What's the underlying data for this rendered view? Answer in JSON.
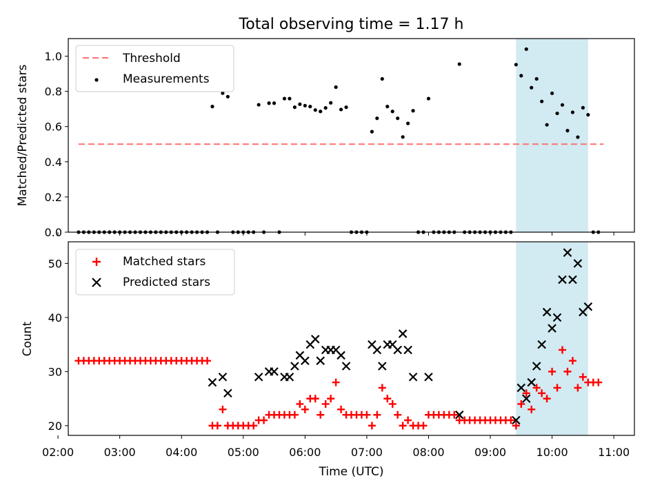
{
  "chart_data": [
    {
      "type": "scatter",
      "title": "Total observing time = 1.17 h",
      "xlabel": "",
      "ylabel": "Matched/Predicted stars",
      "xlim": [
        "02:10",
        "11:20"
      ],
      "ylim": [
        0,
        1.1
      ],
      "yticks": [
        "0.0",
        "0.2",
        "0.4",
        "0.6",
        "0.8",
        "1.0"
      ],
      "highlight_span": {
        "from": "09:25",
        "to": "10:35",
        "color": "#add8e6"
      },
      "legend": {
        "placement": "upper-left",
        "entries": [
          "Threshold",
          "Measurements"
        ]
      },
      "series": [
        {
          "name": "Threshold",
          "style": "dashed-line",
          "color": "#ff6f6f",
          "points": [
            [
              "02:20",
              0.5
            ],
            [
              "10:50",
              0.5
            ]
          ]
        },
        {
          "name": "Measurements",
          "style": "dot",
          "color": "#000000",
          "points": [
            [
              "02:20",
              0
            ],
            [
              "02:25",
              0
            ],
            [
              "02:30",
              0
            ],
            [
              "02:35",
              0
            ],
            [
              "02:40",
              0
            ],
            [
              "02:45",
              0
            ],
            [
              "02:50",
              0
            ],
            [
              "02:55",
              0
            ],
            [
              "03:00",
              0
            ],
            [
              "03:05",
              0
            ],
            [
              "03:10",
              0
            ],
            [
              "03:15",
              0
            ],
            [
              "03:20",
              0
            ],
            [
              "03:25",
              0
            ],
            [
              "03:30",
              0
            ],
            [
              "03:35",
              0
            ],
            [
              "03:40",
              0
            ],
            [
              "03:45",
              0
            ],
            [
              "03:50",
              0
            ],
            [
              "03:55",
              0
            ],
            [
              "04:00",
              0
            ],
            [
              "04:05",
              0
            ],
            [
              "04:10",
              0
            ],
            [
              "04:15",
              0
            ],
            [
              "04:20",
              0
            ],
            [
              "04:25",
              0
            ],
            [
              "04:30",
              0.714
            ],
            [
              "04:35",
              0
            ],
            [
              "04:40",
              0.79
            ],
            [
              "04:45",
              0.77
            ],
            [
              "04:50",
              0
            ],
            [
              "04:55",
              0
            ],
            [
              "05:00",
              0
            ],
            [
              "05:05",
              0
            ],
            [
              "05:10",
              0
            ],
            [
              "05:15",
              0.724
            ],
            [
              "05:20",
              0
            ],
            [
              "05:25",
              0.733
            ],
            [
              "05:30",
              0.733
            ],
            [
              "05:35",
              0
            ],
            [
              "05:40",
              0.759
            ],
            [
              "05:45",
              0.759
            ],
            [
              "05:50",
              0.71
            ],
            [
              "05:55",
              0.727
            ],
            [
              "06:00",
              0.719
            ],
            [
              "06:05",
              0.714
            ],
            [
              "06:10",
              0.694
            ],
            [
              "06:15",
              0.686
            ],
            [
              "06:20",
              0.706
            ],
            [
              "06:25",
              0.735
            ],
            [
              "06:30",
              0.824
            ],
            [
              "06:35",
              0.697
            ],
            [
              "06:40",
              0.71
            ],
            [
              "06:45",
              0
            ],
            [
              "06:50",
              0
            ],
            [
              "06:55",
              0
            ],
            [
              "07:00",
              0
            ],
            [
              "07:05",
              0.571
            ],
            [
              "07:10",
              0.647
            ],
            [
              "07:15",
              0.871
            ],
            [
              "07:20",
              0.714
            ],
            [
              "07:25",
              0.686
            ],
            [
              "07:30",
              0.647
            ],
            [
              "07:35",
              0.541
            ],
            [
              "07:40",
              0.618
            ],
            [
              "07:45",
              0.69
            ],
            [
              "07:50",
              0
            ],
            [
              "07:55",
              0
            ],
            [
              "08:00",
              0.759
            ],
            [
              "08:05",
              0
            ],
            [
              "08:10",
              0
            ],
            [
              "08:15",
              0
            ],
            [
              "08:20",
              0
            ],
            [
              "08:25",
              0
            ],
            [
              "08:30",
              0.955
            ],
            [
              "08:35",
              0
            ],
            [
              "08:40",
              0
            ],
            [
              "08:45",
              0
            ],
            [
              "08:50",
              0
            ],
            [
              "08:55",
              0
            ],
            [
              "09:00",
              0
            ],
            [
              "09:05",
              0
            ],
            [
              "09:10",
              0
            ],
            [
              "09:15",
              0
            ],
            [
              "09:20",
              0
            ],
            [
              "09:25",
              0.952
            ],
            [
              "09:30",
              0.889
            ],
            [
              "09:35",
              1.04
            ],
            [
              "09:40",
              0.821
            ],
            [
              "09:45",
              0.871
            ],
            [
              "09:50",
              0.743
            ],
            [
              "09:55",
              0.61
            ],
            [
              "10:00",
              0.789
            ],
            [
              "10:05",
              0.675
            ],
            [
              "10:10",
              0.723
            ],
            [
              "10:15",
              0.577
            ],
            [
              "10:20",
              0.681
            ],
            [
              "10:25",
              0.54
            ],
            [
              "10:30",
              0.707
            ],
            [
              "10:35",
              0.667
            ],
            [
              "10:40",
              0
            ],
            [
              "10:45",
              0
            ]
          ]
        }
      ]
    },
    {
      "type": "scatter",
      "title": "",
      "xlabel": "Time (UTC)",
      "ylabel": "Count",
      "xlim": [
        "02:10",
        "11:20"
      ],
      "ylim": [
        18.2,
        54
      ],
      "xticks": [
        "02:00",
        "03:00",
        "04:00",
        "05:00",
        "06:00",
        "07:00",
        "08:00",
        "09:00",
        "10:00",
        "11:00"
      ],
      "yticks": [
        "20",
        "30",
        "40",
        "50"
      ],
      "highlight_span": {
        "from": "09:25",
        "to": "10:35",
        "color": "#add8e6"
      },
      "legend": {
        "placement": "upper-left",
        "entries": [
          "Matched stars",
          "Predicted stars"
        ]
      },
      "series": [
        {
          "name": "Matched stars",
          "marker": "plus",
          "color": "#ff0000",
          "points": [
            [
              "02:20",
              32
            ],
            [
              "02:25",
              32
            ],
            [
              "02:30",
              32
            ],
            [
              "02:35",
              32
            ],
            [
              "02:40",
              32
            ],
            [
              "02:45",
              32
            ],
            [
              "02:50",
              32
            ],
            [
              "02:55",
              32
            ],
            [
              "03:00",
              32
            ],
            [
              "03:05",
              32
            ],
            [
              "03:10",
              32
            ],
            [
              "03:15",
              32
            ],
            [
              "03:20",
              32
            ],
            [
              "03:25",
              32
            ],
            [
              "03:30",
              32
            ],
            [
              "03:35",
              32
            ],
            [
              "03:40",
              32
            ],
            [
              "03:45",
              32
            ],
            [
              "03:50",
              32
            ],
            [
              "03:55",
              32
            ],
            [
              "04:00",
              32
            ],
            [
              "04:05",
              32
            ],
            [
              "04:10",
              32
            ],
            [
              "04:15",
              32
            ],
            [
              "04:20",
              32
            ],
            [
              "04:25",
              32
            ],
            [
              "04:30",
              20
            ],
            [
              "04:35",
              20
            ],
            [
              "04:40",
              23
            ],
            [
              "04:45",
              20
            ],
            [
              "04:50",
              20
            ],
            [
              "04:55",
              20
            ],
            [
              "05:00",
              20
            ],
            [
              "05:05",
              20
            ],
            [
              "05:10",
              20
            ],
            [
              "05:15",
              21
            ],
            [
              "05:20",
              21
            ],
            [
              "05:25",
              22
            ],
            [
              "05:30",
              22
            ],
            [
              "05:35",
              22
            ],
            [
              "05:40",
              22
            ],
            [
              "05:45",
              22
            ],
            [
              "05:50",
              22
            ],
            [
              "05:55",
              24
            ],
            [
              "06:00",
              23
            ],
            [
              "06:05",
              25
            ],
            [
              "06:10",
              25
            ],
            [
              "06:15",
              22
            ],
            [
              "06:20",
              24
            ],
            [
              "06:25",
              25
            ],
            [
              "06:30",
              28
            ],
            [
              "06:35",
              23
            ],
            [
              "06:40",
              22
            ],
            [
              "06:45",
              22
            ],
            [
              "06:50",
              22
            ],
            [
              "06:55",
              22
            ],
            [
              "07:00",
              22
            ],
            [
              "07:05",
              20
            ],
            [
              "07:10",
              22
            ],
            [
              "07:15",
              27
            ],
            [
              "07:20",
              25
            ],
            [
              "07:25",
              24
            ],
            [
              "07:30",
              22
            ],
            [
              "07:35",
              20
            ],
            [
              "07:40",
              21
            ],
            [
              "07:45",
              20
            ],
            [
              "07:50",
              20
            ],
            [
              "07:55",
              20
            ],
            [
              "08:00",
              22
            ],
            [
              "08:05",
              22
            ],
            [
              "08:10",
              22
            ],
            [
              "08:15",
              22
            ],
            [
              "08:20",
              22
            ],
            [
              "08:25",
              22
            ],
            [
              "08:30",
              21
            ],
            [
              "08:35",
              21
            ],
            [
              "08:40",
              21
            ],
            [
              "08:45",
              21
            ],
            [
              "08:50",
              21
            ],
            [
              "08:55",
              21
            ],
            [
              "09:00",
              21
            ],
            [
              "09:05",
              21
            ],
            [
              "09:10",
              21
            ],
            [
              "09:15",
              21
            ],
            [
              "09:20",
              21
            ],
            [
              "09:25",
              20
            ],
            [
              "09:30",
              24
            ],
            [
              "09:35",
              26
            ],
            [
              "09:40",
              23
            ],
            [
              "09:45",
              27
            ],
            [
              "09:50",
              26
            ],
            [
              "09:55",
              25
            ],
            [
              "10:00",
              30
            ],
            [
              "10:05",
              27
            ],
            [
              "10:10",
              34
            ],
            [
              "10:15",
              30
            ],
            [
              "10:20",
              32
            ],
            [
              "10:25",
              27
            ],
            [
              "10:30",
              29
            ],
            [
              "10:35",
              28
            ],
            [
              "10:40",
              28
            ],
            [
              "10:45",
              28
            ]
          ]
        },
        {
          "name": "Predicted stars",
          "marker": "x",
          "color": "#000000",
          "points": [
            [
              "04:30",
              28
            ],
            [
              "04:40",
              29
            ],
            [
              "04:45",
              26
            ],
            [
              "05:15",
              29
            ],
            [
              "05:25",
              30
            ],
            [
              "05:30",
              30
            ],
            [
              "05:40",
              29
            ],
            [
              "05:45",
              29
            ],
            [
              "05:50",
              31
            ],
            [
              "05:55",
              33
            ],
            [
              "06:00",
              32
            ],
            [
              "06:05",
              35
            ],
            [
              "06:10",
              36
            ],
            [
              "06:15",
              32
            ],
            [
              "06:20",
              34
            ],
            [
              "06:25",
              34
            ],
            [
              "06:30",
              34
            ],
            [
              "06:35",
              33
            ],
            [
              "06:40",
              31
            ],
            [
              "07:05",
              35
            ],
            [
              "07:10",
              34
            ],
            [
              "07:15",
              31
            ],
            [
              "07:20",
              35
            ],
            [
              "07:25",
              35
            ],
            [
              "07:30",
              34
            ],
            [
              "07:35",
              37
            ],
            [
              "07:40",
              34
            ],
            [
              "07:45",
              29
            ],
            [
              "08:00",
              29
            ],
            [
              "08:30",
              22
            ],
            [
              "09:25",
              21
            ],
            [
              "09:30",
              27
            ],
            [
              "09:35",
              25
            ],
            [
              "09:40",
              28
            ],
            [
              "09:45",
              31
            ],
            [
              "09:50",
              35
            ],
            [
              "09:55",
              41
            ],
            [
              "10:00",
              38
            ],
            [
              "10:05",
              40
            ],
            [
              "10:10",
              47
            ],
            [
              "10:15",
              52
            ],
            [
              "10:20",
              47
            ],
            [
              "10:25",
              50
            ],
            [
              "10:30",
              41
            ],
            [
              "10:35",
              42
            ]
          ]
        }
      ]
    }
  ]
}
